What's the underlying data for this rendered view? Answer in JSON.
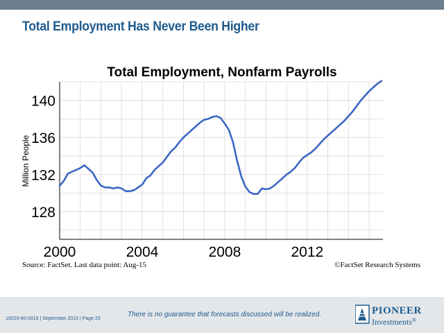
{
  "slide": {
    "title": "Total Employment Has Never Been Higher",
    "source": "Source: FactSet. Last data point: Aug-15",
    "copyright": "©FactSet Research Systems",
    "disclaimer": "There is no guarantee that forecasts discussed will be realized.",
    "footer_code": "19220-80-0915",
    "footer_date": "September 2015",
    "footer_page": "Page 23",
    "logo_line1": "PIONEER",
    "logo_line2": "Investments",
    "logo_mark": "®"
  },
  "colors": {
    "title": "#1d5a8c",
    "line": "#3a66c4",
    "top_bar": "#6d7f8d",
    "footer_bg": "#e4e7ea"
  },
  "chart_data": {
    "type": "line",
    "title": "Total Employment, Nonfarm Payrolls",
    "xlabel": "",
    "ylabel": "Million People",
    "xlim": [
      2000,
      2015.67
    ],
    "ylim": [
      125,
      142
    ],
    "xticks": [
      2000,
      2004,
      2008,
      2012
    ],
    "yticks": [
      128,
      132,
      136,
      140
    ],
    "grid": true,
    "series": [
      {
        "x": [
          2000.0,
          2000.2,
          2000.4,
          2000.6,
          2000.8,
          2001.0,
          2001.2,
          2001.4,
          2001.6,
          2001.8,
          2002.0,
          2002.2,
          2002.4,
          2002.6,
          2002.8,
          2003.0,
          2003.2,
          2003.4,
          2003.6,
          2003.8,
          2004.0,
          2004.2,
          2004.4,
          2004.6,
          2004.8,
          2005.0,
          2005.2,
          2005.4,
          2005.6,
          2005.8,
          2006.0,
          2006.2,
          2006.4,
          2006.6,
          2006.8,
          2007.0,
          2007.2,
          2007.4,
          2007.6,
          2007.8,
          2008.0,
          2008.2,
          2008.4,
          2008.6,
          2008.8,
          2009.0,
          2009.2,
          2009.4,
          2009.6,
          2009.8,
          2010.0,
          2010.2,
          2010.4,
          2010.6,
          2010.8,
          2011.0,
          2011.2,
          2011.4,
          2011.6,
          2011.8,
          2012.0,
          2012.2,
          2012.4,
          2012.6,
          2012.8,
          2013.0,
          2013.2,
          2013.4,
          2013.6,
          2013.8,
          2014.0,
          2014.2,
          2014.4,
          2014.6,
          2014.8,
          2015.0,
          2015.2,
          2015.4,
          2015.6
        ],
        "values": [
          130.8,
          131.3,
          132.1,
          132.3,
          132.5,
          132.7,
          133.0,
          132.6,
          132.2,
          131.4,
          130.8,
          130.6,
          130.6,
          130.5,
          130.6,
          130.5,
          130.2,
          130.2,
          130.3,
          130.6,
          130.9,
          131.6,
          131.9,
          132.5,
          132.9,
          133.3,
          133.9,
          134.5,
          134.9,
          135.5,
          136.0,
          136.4,
          136.8,
          137.2,
          137.6,
          137.9,
          138.0,
          138.2,
          138.3,
          138.1,
          137.5,
          136.8,
          135.5,
          133.5,
          131.8,
          130.7,
          130.1,
          129.9,
          129.9,
          130.5,
          130.4,
          130.5,
          130.8,
          131.2,
          131.6,
          132.0,
          132.3,
          132.7,
          133.3,
          133.8,
          134.1,
          134.4,
          134.8,
          135.3,
          135.8,
          136.2,
          136.6,
          137.0,
          137.4,
          137.8,
          138.3,
          138.8,
          139.4,
          140.0,
          140.5,
          141.0,
          141.4,
          141.8,
          142.1
        ]
      }
    ]
  }
}
